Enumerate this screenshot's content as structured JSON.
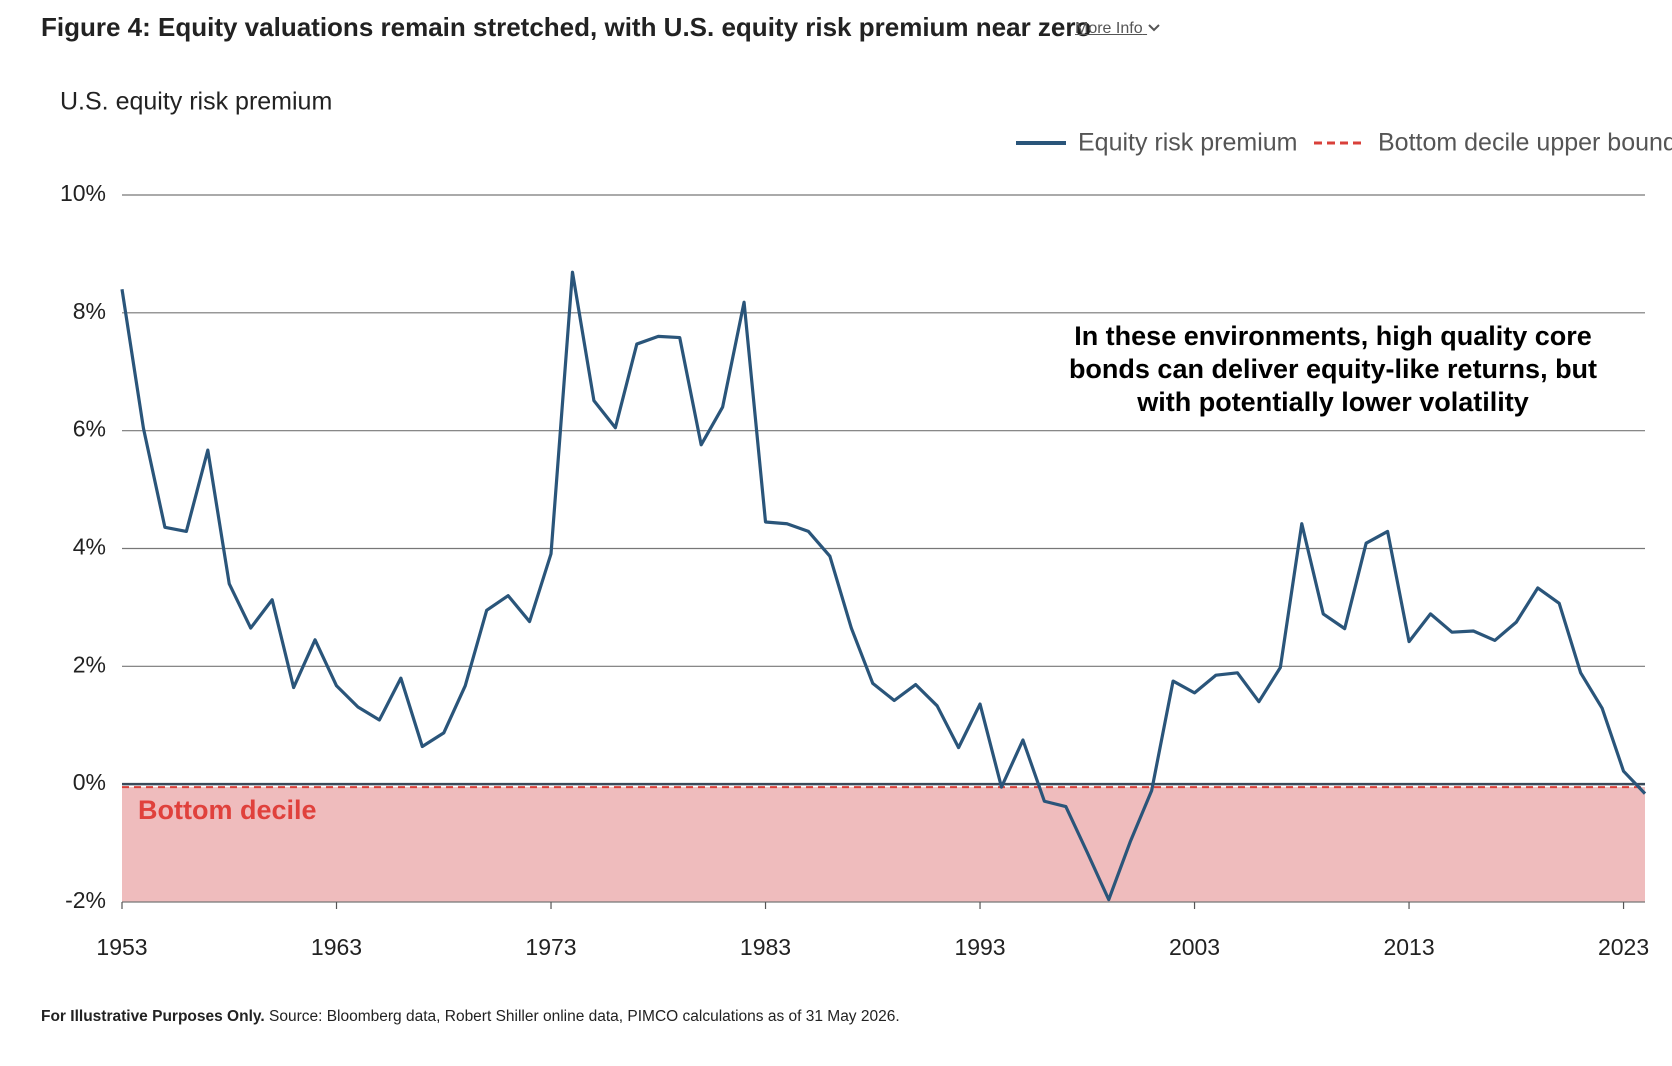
{
  "header": {
    "title": "Figure 4: Equity valuations remain stretched, with U.S. equity risk premium near zero",
    "more_info": "More Info"
  },
  "chart_data": {
    "type": "line",
    "y_label": "U.S. equity risk premium",
    "x": [
      1953,
      1954,
      1955,
      1956,
      1957,
      1958,
      1959,
      1960,
      1961,
      1962,
      1963,
      1964,
      1965,
      1966,
      1967,
      1968,
      1969,
      1970,
      1971,
      1972,
      1973,
      1974,
      1975,
      1976,
      1977,
      1978,
      1979,
      1980,
      1981,
      1982,
      1983,
      1984,
      1985,
      1986,
      1987,
      1988,
      1989,
      1990,
      1991,
      1992,
      1993,
      1994,
      1995,
      1996,
      1997,
      1998,
      1999,
      2000,
      2001,
      2002,
      2003,
      2004,
      2005,
      2006,
      2007,
      2008,
      2009,
      2010,
      2011,
      2012,
      2013,
      2014,
      2015,
      2016,
      2017,
      2018,
      2019,
      2020,
      2021,
      2022,
      2023,
      2024
    ],
    "series": [
      {
        "name": "Equity risk premium",
        "color": "#2a557a",
        "values": [
          8.4,
          6.04,
          4.36,
          4.29,
          5.67,
          3.4,
          2.65,
          3.13,
          1.64,
          2.45,
          1.67,
          1.31,
          1.09,
          1.8,
          0.64,
          0.87,
          1.67,
          2.95,
          3.2,
          2.76,
          3.91,
          8.69,
          6.51,
          6.05,
          7.47,
          7.6,
          7.58,
          5.76,
          6.4,
          8.18,
          4.45,
          4.42,
          4.29,
          3.87,
          2.65,
          1.71,
          1.42,
          1.69,
          1.33,
          0.62,
          1.36,
          -0.05,
          0.75,
          -0.29,
          -0.38,
          -1.16,
          -1.96,
          -0.98,
          -0.11,
          1.75,
          1.55,
          1.85,
          1.89,
          1.4,
          1.98,
          4.42,
          2.89,
          2.64,
          4.09,
          4.29,
          2.42,
          2.89,
          2.58,
          2.6,
          2.44,
          2.75,
          3.33,
          3.07,
          1.89,
          1.29,
          0.22,
          -0.16
        ]
      }
    ],
    "reference_line": {
      "name": "Bottom decile upper bound",
      "value": -0.05,
      "color": "#d9403a"
    },
    "band": {
      "label": "Bottom decile",
      "color": "#efbcbd",
      "label_color": "#e0413c"
    },
    "annotation": [
      "In these environments, high quality core",
      "bonds can deliver equity-like returns, but",
      "with potentially lower volatility"
    ],
    "xlim": [
      1953,
      2024
    ],
    "ylim": [
      -2,
      10
    ],
    "xticks": [
      1953,
      1963,
      1973,
      1983,
      1993,
      2003,
      2013,
      2023
    ],
    "yticks": [
      {
        "value": -2,
        "label": "-2%"
      },
      {
        "value": 0,
        "label": "0%"
      },
      {
        "value": 2,
        "label": "2%"
      },
      {
        "value": 4,
        "label": "4%"
      },
      {
        "value": 6,
        "label": "6%"
      },
      {
        "value": 8,
        "label": "8%"
      },
      {
        "value": 10,
        "label": "10%"
      }
    ],
    "grid": true
  },
  "footnote": {
    "bold": "For Illustrative Purposes Only.",
    "text": "Source: Bloomberg data, Robert Shiller online data, PIMCO calculations as of 31 May 2026."
  }
}
